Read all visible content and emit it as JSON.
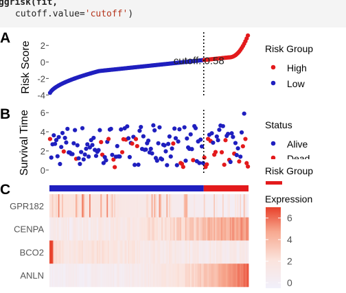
{
  "code": {
    "line1_fn": "ggrisk",
    "line1_rest": "(fit,",
    "line2_prefix": "cutoff.value=",
    "line2_string": "'cutoff'",
    "line2_suffix": ")"
  },
  "colors": {
    "high": "#e31a1c",
    "low": "#1f1fbf",
    "heat_low": "#f1f0fb",
    "heat_high": "#e8402a"
  },
  "chart_data": [
    {
      "type": "scatter",
      "panel_label": "A",
      "ylabel": "Risk Score",
      "ylim": [
        -4.3,
        3.6
      ],
      "yticks": [
        "2",
        "0",
        "-2",
        "-4"
      ],
      "ytick_values": [
        2,
        0,
        -2,
        -4
      ],
      "n_patients": 160,
      "cutoff_index": 124,
      "cutoff_label": "cutoff: 0.58",
      "min_score": -4.0,
      "max_score": 3.4,
      "legend": {
        "title": "Risk Group",
        "items": [
          "High",
          "Low"
        ]
      }
    },
    {
      "type": "scatter",
      "panel_label": "B",
      "ylabel": "Survival Time",
      "ylim": [
        -0.3,
        6.3
      ],
      "yticks": [
        "6",
        "4",
        "2",
        "0"
      ],
      "ytick_values": [
        6,
        4,
        2,
        0
      ],
      "n_patients": 160,
      "legend": {
        "title": "Status",
        "items": [
          "Alive",
          "Dead"
        ]
      }
    },
    {
      "type": "heatmap",
      "panel_label": "C",
      "rows": [
        "GPR182",
        "CENPA",
        "BCO2",
        "ANLN"
      ],
      "group_bar_title": "Risk Group",
      "colorbar": {
        "title": "Expression",
        "ticks": [
          "6",
          "4",
          "2",
          "0"
        ],
        "tick_values": [
          6,
          4,
          2,
          0
        ],
        "range": [
          -0.5,
          7
        ]
      }
    }
  ]
}
